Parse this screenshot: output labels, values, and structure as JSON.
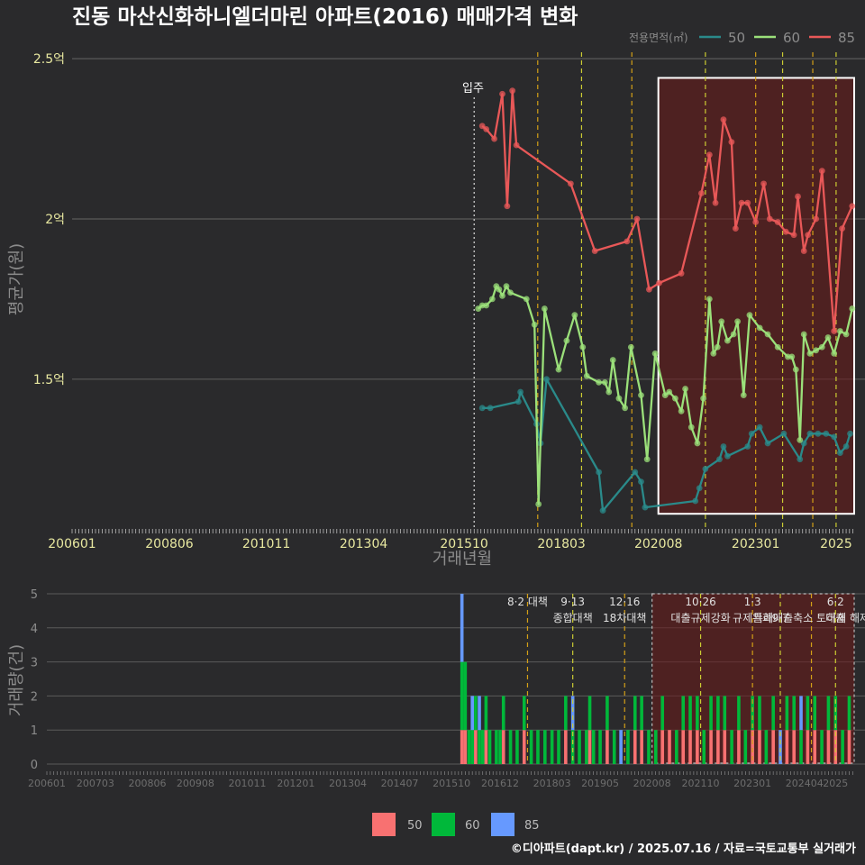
{
  "colors": {
    "bg": "#2a2a2c",
    "grid": "#5a5a5a",
    "tick_text": "#e8e8a0",
    "axis_title": "#8c8c8c",
    "policy_line": "#d4a017",
    "policy_line_alt": "#cccc33",
    "dark_area": "#6b1a1a",
    "s50": "#2a8a8a",
    "s60": "#9be07a",
    "s85": "#e85858",
    "bar50": "#f87171",
    "bar60": "#00b83a",
    "bar85": "#6699ff"
  },
  "chart_data": [
    {
      "type": "line",
      "title": "진동 마산신화하니엘더마린 아파트(2016) 매매가격 변화",
      "xlabel": "거래년월",
      "ylabel": "평균가(원)",
      "x_tick_labels": [
        "200601",
        "200806",
        "201011",
        "201304",
        "201510",
        "201803",
        "202008",
        "202301",
        "2025"
      ],
      "x_tick_values": [
        2006.0,
        2008.42,
        2010.83,
        2013.25,
        2015.75,
        2018.17,
        2020.58,
        2023.0,
        2025.0
      ],
      "y_tick_labels": [
        "1.5억",
        "2억",
        "2.5억"
      ],
      "y_tick_values": [
        1.5,
        2.0,
        2.5
      ],
      "xlim": [
        2006.0,
        2025.45
      ],
      "ylim": [
        1.03,
        2.52
      ],
      "legend_title": "전용면적(㎡)",
      "legend_position": "top-right",
      "moving_in_label": "입주",
      "moving_in_x": 2016.0,
      "policy_lines_x": [
        2017.58,
        2018.67,
        2019.92,
        2021.75,
        2023.0,
        2023.67,
        2024.42,
        2025.0
      ],
      "highlight_x": [
        2020.58,
        2025.45
      ],
      "highlight_y": [
        1.08,
        2.44
      ],
      "series": [
        {
          "name": "50",
          "x": [
            2016.2,
            2016.4,
            2017.1,
            2017.15,
            2017.55,
            2017.65,
            2017.8,
            2019.1,
            2019.2,
            2020.0,
            2020.15,
            2020.25,
            2021.5,
            2021.6,
            2021.75,
            2022.1,
            2022.2,
            2022.3,
            2022.8,
            2022.9,
            2023.1,
            2023.3,
            2023.7,
            2024.1,
            2024.2,
            2024.35,
            2024.55,
            2024.75,
            2024.95,
            2025.1,
            2025.25,
            2025.35
          ],
          "y": [
            1.41,
            1.41,
            1.43,
            1.46,
            1.36,
            1.3,
            1.5,
            1.21,
            1.09,
            1.21,
            1.18,
            1.1,
            1.12,
            1.16,
            1.22,
            1.25,
            1.29,
            1.26,
            1.29,
            1.33,
            1.35,
            1.3,
            1.33,
            1.25,
            1.3,
            1.33,
            1.33,
            1.33,
            1.32,
            1.27,
            1.29,
            1.33
          ],
          "line": true
        },
        {
          "name": "60",
          "x": [
            2016.1,
            2016.2,
            2016.3,
            2016.45,
            2016.55,
            2016.62,
            2016.7,
            2016.8,
            2016.9,
            2017.3,
            2017.5,
            2017.6,
            2017.75,
            2018.1,
            2018.3,
            2018.5,
            2018.7,
            2018.8,
            2019.1,
            2019.25,
            2019.35,
            2019.45,
            2019.6,
            2019.75,
            2019.9,
            2020.15,
            2020.3,
            2020.5,
            2020.75,
            2020.85,
            2021.0,
            2021.15,
            2021.25,
            2021.4,
            2021.55,
            2021.7,
            2021.85,
            2021.95,
            2022.05,
            2022.15,
            2022.3,
            2022.45,
            2022.55,
            2022.7,
            2022.85,
            2023.1,
            2023.3,
            2023.55,
            2023.8,
            2023.9,
            2024.0,
            2024.1,
            2024.2,
            2024.35,
            2024.5,
            2024.65,
            2024.8,
            2024.95,
            2025.1,
            2025.25,
            2025.4
          ],
          "y": [
            1.72,
            1.73,
            1.73,
            1.75,
            1.79,
            1.78,
            1.76,
            1.79,
            1.77,
            1.75,
            1.67,
            1.11,
            1.72,
            1.53,
            1.62,
            1.7,
            1.6,
            1.51,
            1.49,
            1.49,
            1.46,
            1.56,
            1.44,
            1.41,
            1.6,
            1.45,
            1.25,
            1.58,
            1.45,
            1.46,
            1.44,
            1.4,
            1.47,
            1.35,
            1.3,
            1.44,
            1.75,
            1.58,
            1.6,
            1.68,
            1.62,
            1.64,
            1.68,
            1.45,
            1.7,
            1.66,
            1.64,
            1.6,
            1.57,
            1.57,
            1.53,
            1.31,
            1.64,
            1.58,
            1.59,
            1.6,
            1.63,
            1.58,
            1.65,
            1.64,
            1.72
          ],
          "line": true
        },
        {
          "name": "85",
          "x": [
            2016.2,
            2016.3,
            2016.5,
            2016.7,
            2016.82,
            2016.95,
            2017.05,
            2018.4,
            2019.0,
            2019.8,
            2020.05,
            2020.35,
            2020.6,
            2021.15,
            2021.65,
            2021.85,
            2022.0,
            2022.2,
            2022.4,
            2022.5,
            2022.65,
            2022.8,
            2023.0,
            2023.2,
            2023.35,
            2023.55,
            2023.75,
            2023.95,
            2024.05,
            2024.2,
            2024.3,
            2024.5,
            2024.65,
            2024.95,
            2025.15,
            2025.4
          ],
          "y": [
            2.29,
            2.28,
            2.25,
            2.39,
            2.04,
            2.4,
            2.23,
            2.11,
            1.9,
            1.93,
            2.0,
            1.78,
            1.8,
            1.83,
            2.08,
            2.2,
            2.05,
            2.31,
            2.24,
            1.97,
            2.05,
            2.05,
            1.99,
            2.11,
            2.0,
            1.99,
            1.96,
            1.95,
            2.07,
            1.9,
            1.95,
            2.0,
            2.15,
            1.65,
            1.97,
            2.04
          ],
          "line": true
        }
      ]
    },
    {
      "type": "bar",
      "stacked": true,
      "ylabel": "거래량(건)",
      "x_tick_labels": [
        "200601",
        "200703",
        "200806",
        "200908",
        "201011",
        "201201",
        "201304",
        "201407",
        "201510",
        "201612",
        "201803",
        "201905",
        "202008",
        "202110",
        "202301",
        "202404",
        "2025"
      ],
      "x_tick_values": [
        2006.0,
        2007.17,
        2008.42,
        2009.58,
        2010.83,
        2012.0,
        2013.25,
        2014.5,
        2015.75,
        2016.92,
        2018.17,
        2019.33,
        2020.58,
        2021.75,
        2023.0,
        2024.25,
        2025.0
      ],
      "y_tick_labels": [
        "0",
        "1",
        "2",
        "3",
        "4",
        "5"
      ],
      "y_tick_values": [
        0,
        1,
        2,
        3,
        4,
        5
      ],
      "xlim": [
        2006.0,
        2025.45
      ],
      "ylim": [
        0,
        5.2
      ],
      "legend_position": "bottom",
      "legend_labels": [
        "50",
        "60",
        "85"
      ],
      "policy_annotations": [
        {
          "x": 2017.58,
          "top": "8·2 대책",
          "bottom": ""
        },
        {
          "x": 2018.67,
          "top": "9·13",
          "bottom": "종합대책"
        },
        {
          "x": 2019.92,
          "top": "12·16",
          "bottom": "18차대책"
        },
        {
          "x": 2021.75,
          "top": "10·26",
          "bottom": "대출규제강화"
        },
        {
          "x": 2023.0,
          "top": "1·3",
          "bottom": "규제완화"
        },
        {
          "x": 2023.67,
          "top": "",
          "bottom": "9·7"
        },
        {
          "x": 2024.42,
          "top": "",
          "bottom": "특례대출축소 토허제 해제"
        },
        {
          "x": 2025.0,
          "top": "6·2",
          "bottom": "대출"
        }
      ],
      "x": [
        2016.0,
        2016.08,
        2016.17,
        2016.25,
        2016.33,
        2016.42,
        2016.5,
        2016.58,
        2016.67,
        2016.75,
        2016.83,
        2016.92,
        2017.0,
        2017.17,
        2017.33,
        2017.5,
        2017.67,
        2017.83,
        2018.0,
        2018.17,
        2018.33,
        2018.5,
        2018.67,
        2018.83,
        2019.0,
        2019.08,
        2019.17,
        2019.33,
        2019.5,
        2019.67,
        2019.83,
        2020.0,
        2020.17,
        2020.33,
        2020.5,
        2020.67,
        2020.83,
        2021.0,
        2021.17,
        2021.33,
        2021.5,
        2021.67,
        2021.83,
        2022.0,
        2022.17,
        2022.33,
        2022.5,
        2022.67,
        2022.83,
        2023.0,
        2023.17,
        2023.33,
        2023.5,
        2023.67,
        2023.83,
        2024.0,
        2024.17,
        2024.33,
        2024.5,
        2024.67,
        2024.83,
        2025.0,
        2025.17,
        2025.33
      ],
      "series": [
        {
          "name": "50",
          "values": [
            1,
            1,
            0,
            0,
            1,
            0,
            0,
            1,
            0,
            0,
            0,
            0,
            1,
            0,
            0,
            1,
            0,
            0,
            0,
            0,
            0,
            1,
            0,
            0,
            0,
            1,
            0,
            0,
            1,
            0,
            0,
            0,
            1,
            1,
            0,
            0,
            1,
            1,
            0,
            1,
            1,
            1,
            0,
            1,
            1,
            1,
            0,
            1,
            0,
            1,
            1,
            0,
            1,
            0,
            1,
            1,
            0,
            1,
            1,
            0,
            1,
            1,
            0,
            1
          ]
        },
        {
          "name": "60",
          "values": [
            2,
            2,
            1,
            1,
            1,
            1,
            1,
            1,
            1,
            0,
            1,
            1,
            1,
            1,
            1,
            1,
            1,
            1,
            1,
            1,
            1,
            1,
            1,
            1,
            1,
            1,
            1,
            1,
            1,
            1,
            0,
            1,
            1,
            1,
            1,
            1,
            1,
            0,
            1,
            1,
            1,
            1,
            1,
            1,
            1,
            1,
            1,
            1,
            1,
            1,
            1,
            1,
            1,
            0,
            1,
            1,
            1,
            1,
            1,
            1,
            1,
            1,
            1,
            1
          ]
        },
        {
          "name": "85",
          "values": [
            2,
            0,
            0,
            1,
            0,
            1,
            0,
            0,
            0,
            0,
            0,
            0,
            0,
            0,
            0,
            0,
            0,
            0,
            0,
            0,
            0,
            0,
            1,
            0,
            0,
            0,
            0,
            0,
            0,
            0,
            1,
            0,
            0,
            0,
            0,
            0,
            0,
            0,
            0,
            0,
            0,
            0,
            0,
            0,
            0,
            0,
            0,
            0,
            0,
            0,
            0,
            0,
            0,
            1,
            0,
            0,
            1,
            0,
            0,
            0,
            0,
            0,
            0,
            0
          ]
        }
      ]
    }
  ],
  "footer": {
    "credit": "©디아파트(dapt.kr) / 2025.07.16 / 자료=국토교통부 실거래가"
  }
}
